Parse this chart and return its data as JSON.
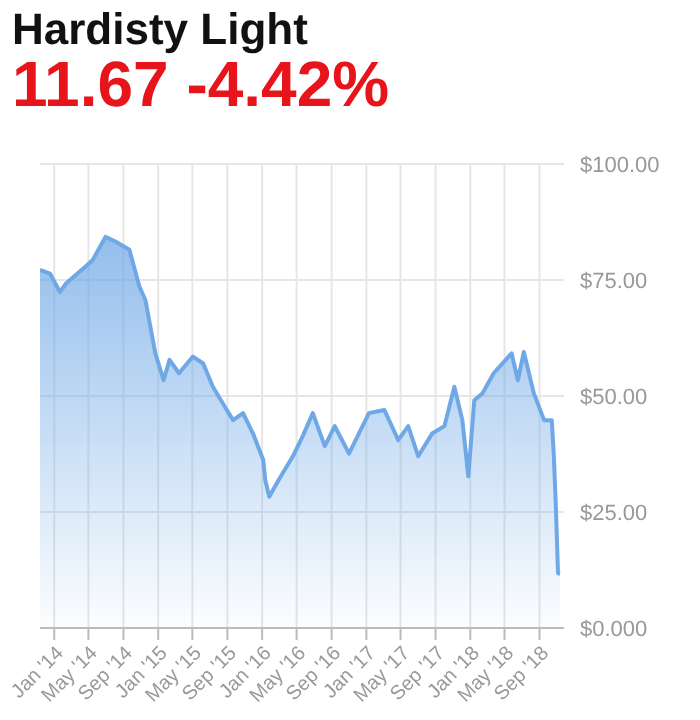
{
  "chart_data": {
    "type": "area",
    "title": "Hardisty Light",
    "subtitle": "11.67 -4.42%",
    "x": [
      "2013-11-12",
      "2013-12-17",
      "2014-01-21",
      "2014-02-12",
      "2014-04-21",
      "2014-05-16",
      "2014-06-30",
      "2014-08-04",
      "2014-09-22",
      "2014-10-27",
      "2014-11-17",
      "2014-12-22",
      "2015-01-20",
      "2015-02-10",
      "2015-03-15",
      "2015-05-03",
      "2015-06-08",
      "2015-07-12",
      "2015-08-23",
      "2015-09-21",
      "2015-10-26",
      "2015-11-30",
      "2016-01-05",
      "2016-01-12",
      "2016-01-26",
      "2016-02-28",
      "2016-04-18",
      "2016-05-23",
      "2016-06-27",
      "2016-08-08",
      "2016-09-12",
      "2016-11-01",
      "2017-01-10",
      "2017-03-05",
      "2017-04-23",
      "2017-05-28",
      "2017-07-02",
      "2017-08-20",
      "2017-10-02",
      "2017-11-06",
      "2017-12-04",
      "2017-12-25",
      "2018-01-15",
      "2018-02-13",
      "2018-03-24",
      "2018-05-26",
      "2018-06-17",
      "2018-07-08",
      "2018-08-12",
      "2018-09-17",
      "2018-10-14",
      "2018-10-21",
      "2018-10-28",
      "2018-11-05",
      "2018-11-12"
    ],
    "series": [
      {
        "color": "#6fa8e6",
        "values": [
          77.2,
          76.4,
          72.4,
          74.3,
          77.9,
          79.3,
          84.3,
          83.3,
          81.5,
          73.6,
          70.7,
          59.2,
          53.4,
          57.8,
          54.9,
          58.5,
          57,
          52,
          47.7,
          44.8,
          46.3,
          41.9,
          36.2,
          31.9,
          28.3,
          31.9,
          37,
          41.4,
          46.3,
          39.2,
          43.5,
          37.6,
          46.3,
          47,
          40.5,
          43.5,
          37,
          41.9,
          43.5,
          52,
          44.8,
          32.7,
          49.1,
          50.6,
          54.9,
          59.2,
          53.4,
          59.5,
          50.6,
          44.8,
          44.8,
          37.6,
          26.9,
          11.8,
          11.7
        ]
      }
    ],
    "xlim": [
      "2013-11-12",
      "2018-11-26"
    ],
    "xticks": [
      {
        "value": "2014-01-01",
        "label": "Jan '14"
      },
      {
        "value": "2014-05-01",
        "label": "May '14"
      },
      {
        "value": "2014-09-01",
        "label": "Sep '14"
      },
      {
        "value": "2015-01-01",
        "label": "Jan '15"
      },
      {
        "value": "2015-05-01",
        "label": "May '15"
      },
      {
        "value": "2015-09-01",
        "label": "Sep '15"
      },
      {
        "value": "2016-01-01",
        "label": "Jan '16"
      },
      {
        "value": "2016-05-01",
        "label": "May '16"
      },
      {
        "value": "2016-09-01",
        "label": "Sep '16"
      },
      {
        "value": "2017-01-01",
        "label": "Jan '17"
      },
      {
        "value": "2017-05-01",
        "label": "May '17"
      },
      {
        "value": "2017-09-01",
        "label": "Sep '17"
      },
      {
        "value": "2018-01-01",
        "label": "Jan '18"
      },
      {
        "value": "2018-05-01",
        "label": "May '18"
      },
      {
        "value": "2018-09-01",
        "label": "Sep '18"
      }
    ],
    "ylim": [
      0,
      100
    ],
    "yticks": [
      {
        "value": 0,
        "label": "$0.000"
      },
      {
        "value": 25,
        "label": "$25.00"
      },
      {
        "value": 50,
        "label": "$50.00"
      },
      {
        "value": 75,
        "label": "$75.00"
      },
      {
        "value": 100,
        "label": "$100.00"
      }
    ],
    "grid": true,
    "legend": false,
    "marker": "none",
    "line_style": "solid"
  }
}
